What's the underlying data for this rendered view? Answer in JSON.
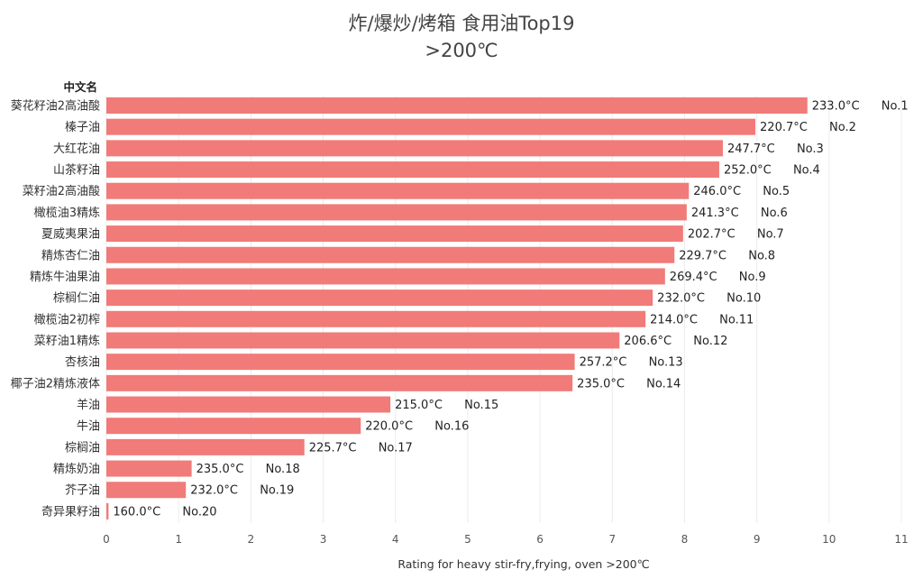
{
  "chart_data": {
    "type": "bar",
    "orientation": "horizontal",
    "title": "炸/爆炒/烤箱 食用油Top19",
    "subtitle": ">200℃",
    "xlabel": "Rating for heavy stir-fry,frying, oven >200℃",
    "ylabel": "中文名",
    "xlim": [
      0,
      11
    ],
    "xticks": [
      "0",
      "1",
      "2",
      "3",
      "4",
      "5",
      "6",
      "7",
      "8",
      "9",
      "10",
      "11"
    ],
    "grid": true,
    "bar_color": "#f07b78",
    "categories": [
      "葵花籽油2高油酸",
      "榛子油",
      "大红花油",
      "山茶籽油",
      "菜籽油2高油酸",
      "橄榄油3精炼",
      "夏威夷果油",
      "精炼杏仁油",
      "精炼牛油果油",
      "棕榈仁油",
      "橄榄油2初榨",
      "菜籽油1精炼",
      "杏核油",
      "椰子油2精炼液体",
      "羊油",
      "牛油",
      "棕榈油",
      "精炼奶油",
      "芥子油",
      "奇异果籽油"
    ],
    "values": [
      9.7,
      8.98,
      8.53,
      8.48,
      8.06,
      8.03,
      7.98,
      7.86,
      7.73,
      7.56,
      7.46,
      7.1,
      6.48,
      6.45,
      3.93,
      3.52,
      2.74,
      1.18,
      1.1,
      0.03
    ],
    "value_labels": [
      "233.0°C",
      "220.7°C",
      "247.7°C",
      "252.0°C",
      "246.0°C",
      "241.3°C",
      "202.7°C",
      "229.7°C",
      "269.4°C",
      "232.0°C",
      "214.0°C",
      "206.6°C",
      "257.2°C",
      "235.0°C",
      "215.0°C",
      "220.0°C",
      "225.7°C",
      "235.0°C",
      "232.0°C",
      "160.0°C"
    ],
    "rank_labels": [
      "No.1",
      "No.2",
      "No.3",
      "No.4",
      "No.5",
      "No.6",
      "No.7",
      "No.8",
      "No.9",
      "No.10",
      "No.11",
      "No.12",
      "No.13",
      "No.14",
      "No.15",
      "No.16",
      "No.17",
      "No.18",
      "No.19",
      "No.20"
    ]
  }
}
